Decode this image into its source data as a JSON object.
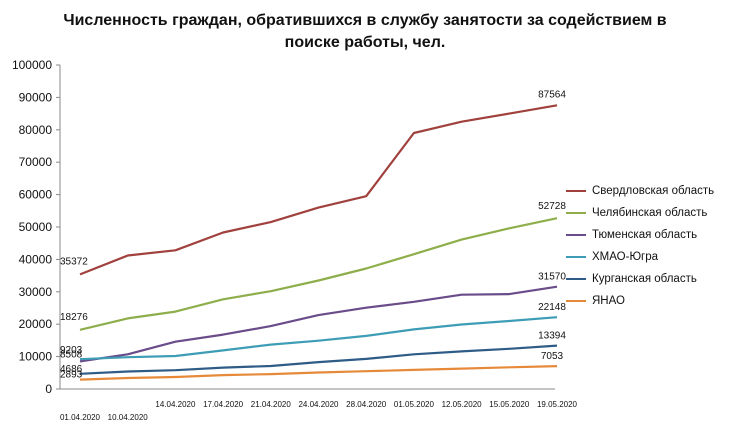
{
  "chart_data": {
    "type": "line",
    "title_lines": [
      "Численность граждан, обратившихся в службу занятости за содействием в",
      "поиске работы, чел."
    ],
    "x_upper_labels": [
      "",
      "",
      "14.04.2020",
      "17.04.2020",
      "21.04.2020",
      "24.04.2020",
      "28.04.2020",
      "01.05.2020",
      "12.05.2020",
      "15.05.2020",
      "19.05.2020"
    ],
    "x_lower_labels": [
      "01.04.2020",
      "10.04.2020",
      "",
      "",
      "",
      "",
      "",
      "",
      "",
      "",
      ""
    ],
    "ylim": [
      0,
      100000
    ],
    "yticks": [
      0,
      10000,
      20000,
      30000,
      40000,
      50000,
      60000,
      70000,
      80000,
      90000,
      100000
    ],
    "grid": false,
    "legend_position": "right",
    "series": [
      {
        "name": "Свердловская область",
        "color": "#A0413D",
        "values": [
          35372,
          41200,
          42800,
          48300,
          51500,
          56000,
          59500,
          79000,
          82500,
          85000,
          87564
        ],
        "start_label": "35372",
        "end_label": "87564"
      },
      {
        "name": "Челябинская область",
        "color": "#8EAE4B",
        "values": [
          18276,
          21800,
          23900,
          27700,
          30200,
          33500,
          37200,
          41600,
          46100,
          49600,
          52728
        ],
        "start_label": "18276",
        "end_label": "52728"
      },
      {
        "name": "Тюменская область",
        "color": "#6A4C8B",
        "values": [
          8508,
          10700,
          14600,
          16800,
          19400,
          22800,
          25100,
          26900,
          29100,
          29300,
          31570
        ],
        "start_label": "8508",
        "end_label": "31570"
      },
      {
        "name": "ХМАО-Югра",
        "color": "#3E9DB6",
        "values": [
          9203,
          9800,
          10200,
          11900,
          13700,
          14900,
          16400,
          18400,
          19900,
          21000,
          22148
        ],
        "start_label": "9203",
        "end_label": "22148"
      },
      {
        "name": "Курганская область",
        "color": "#2E5C87",
        "values": [
          4686,
          5400,
          5800,
          6600,
          7100,
          8300,
          9300,
          10700,
          11600,
          12400,
          13394
        ],
        "start_label": "4686",
        "end_label": "13394"
      },
      {
        "name": "ЯНАО",
        "color": "#E68A3A",
        "values": [
          2893,
          3400,
          3700,
          4300,
          4600,
          5100,
          5500,
          5900,
          6300,
          6700,
          7053
        ],
        "start_label": "2893",
        "end_label": "7053"
      }
    ]
  }
}
